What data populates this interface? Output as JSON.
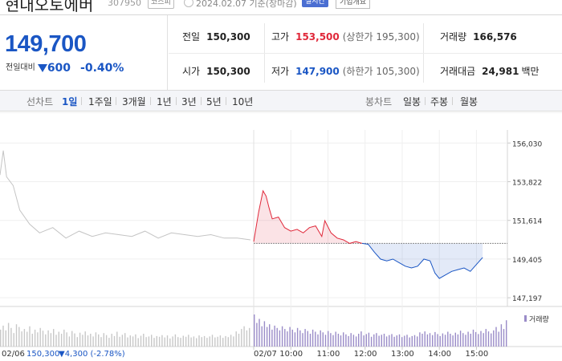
{
  "header": {
    "stock_name": "현대오토에버",
    "stock_code": "307950",
    "market": "코스피",
    "date": "2024.02.07 기준(장마감)",
    "realtime_label": "실시간",
    "company_info_label": "기업개요"
  },
  "summary": {
    "current_price": "149,700",
    "change_label": "전일대비",
    "change_direction": "down",
    "change_amount": "600",
    "change_percent": "-0.40%",
    "stats": {
      "prev_close": {
        "label": "전일",
        "value": "150,300"
      },
      "high": {
        "label": "고가",
        "value": "153,500",
        "limit_label": "(상한가 195,300)"
      },
      "volume": {
        "label": "거래량",
        "value": "166,576"
      },
      "open": {
        "label": "시가",
        "value": "150,300"
      },
      "low": {
        "label": "저가",
        "value": "147,900",
        "limit_label": "(하한가 105,300)"
      },
      "trade_value": {
        "label": "거래대금",
        "value": "24,981",
        "unit": "백만"
      }
    }
  },
  "toolbar": {
    "line_chart_label": "선차트",
    "periods": [
      "1일",
      "1주일",
      "3개월",
      "1년",
      "3년",
      "5년",
      "10년"
    ],
    "active_period": "1일",
    "candle_chart_label": "봉차트",
    "candle_periods": [
      "일봉",
      "주봉",
      "월봉"
    ]
  },
  "colors": {
    "up": "#e0283a",
    "down": "#1a56c4",
    "prev_day_line": "#c4c4c4",
    "volume_prev": "#c8c8c8",
    "volume_today": "#9a8cc8"
  },
  "chart_data": {
    "type": "line",
    "y_ticks": [
      156030,
      153822,
      151614,
      149405,
      147197
    ],
    "y_tick_labels": [
      "156,030",
      "153,822",
      "151,614",
      "149,405",
      "147,197"
    ],
    "ylim": [
      146700,
      156500
    ],
    "base_price": 150300,
    "x_tick_labels": [
      "02/07",
      "10:00",
      "11:00",
      "12:00",
      "13:00",
      "14:00",
      "15:00"
    ],
    "x_ticks_min": [
      0,
      60,
      120,
      180,
      240,
      300,
      360
    ],
    "xlim_min": [
      0,
      410
    ],
    "prev_day": {
      "label": "02/06",
      "x_min": [
        0,
        5,
        10,
        20,
        30,
        45,
        60,
        80,
        100,
        120,
        140,
        160,
        180,
        200,
        220,
        240,
        260,
        280,
        300,
        320,
        340,
        360,
        380
      ],
      "values": [
        154200,
        155600,
        154100,
        153600,
        152200,
        151400,
        150900,
        151200,
        150600,
        151000,
        150700,
        150900,
        150800,
        150700,
        151000,
        150600,
        150900,
        150800,
        150700,
        150800,
        150600,
        150600,
        150500
      ]
    },
    "today": {
      "x_min": [
        0,
        8,
        15,
        20,
        25,
        30,
        40,
        50,
        60,
        70,
        80,
        90,
        100,
        110,
        115,
        125,
        135,
        145,
        155,
        165,
        175,
        185,
        195,
        205,
        215,
        225,
        235,
        245,
        255,
        265,
        275,
        285,
        293,
        300,
        310,
        320,
        330,
        340,
        350,
        360,
        370
      ],
      "values": [
        150400,
        152100,
        153300,
        153000,
        152300,
        151700,
        151800,
        151200,
        151000,
        151100,
        150900,
        151200,
        151300,
        150700,
        151600,
        150900,
        150600,
        150500,
        150300,
        150400,
        150300,
        150250,
        149800,
        149400,
        149300,
        149400,
        149200,
        149000,
        148900,
        149000,
        149400,
        149300,
        148600,
        148300,
        148500,
        148700,
        148800,
        148900,
        148700,
        149100,
        149500
      ]
    },
    "volume_label": "거래량",
    "prev_volume": [
      50,
      62,
      48,
      70,
      55,
      40,
      66,
      58,
      45,
      52,
      44,
      60,
      38,
      50,
      42,
      55,
      47,
      36,
      48,
      40,
      52,
      35,
      44,
      38,
      50,
      42,
      30,
      46,
      39,
      28,
      41,
      35,
      45,
      33,
      38,
      30,
      42,
      36,
      28,
      40,
      34,
      26,
      38,
      31,
      44,
      29,
      35,
      40,
      27,
      33,
      30,
      36,
      25,
      32,
      38,
      28,
      30,
      35,
      26,
      31,
      29,
      34,
      27,
      33,
      24,
      30,
      36,
      28,
      26,
      32,
      29,
      35,
      27,
      30,
      25,
      33,
      28,
      31,
      26,
      30,
      35,
      27,
      29,
      33,
      26,
      31,
      28,
      35,
      30,
      45,
      38,
      52,
      60,
      48,
      55
    ],
    "today_volume": [
      95,
      70,
      82,
      60,
      75,
      58,
      66,
      50,
      62,
      55,
      48,
      60,
      52,
      45,
      58,
      50,
      42,
      55,
      48,
      40,
      52,
      46,
      38,
      50,
      44,
      36,
      48,
      42,
      35,
      46,
      40,
      34,
      44,
      38,
      33,
      42,
      36,
      31,
      40,
      35,
      30,
      38,
      45,
      33,
      37,
      41,
      29,
      36,
      40,
      32,
      35,
      38,
      30,
      34,
      37,
      29,
      33,
      36,
      28,
      32,
      35,
      27,
      31,
      34,
      30,
      42,
      38,
      45,
      36,
      40,
      34,
      43,
      37,
      31,
      39,
      35,
      44,
      38,
      33,
      41,
      36,
      47,
      40,
      35,
      44,
      38,
      50,
      43,
      37,
      46,
      40,
      52,
      45,
      39,
      48,
      58,
      44,
      66,
      52,
      78
    ]
  },
  "footer": {
    "prev_date": "02/06",
    "prev_price": "150,300",
    "prev_change": "▼4,300 (-2.78%)"
  }
}
